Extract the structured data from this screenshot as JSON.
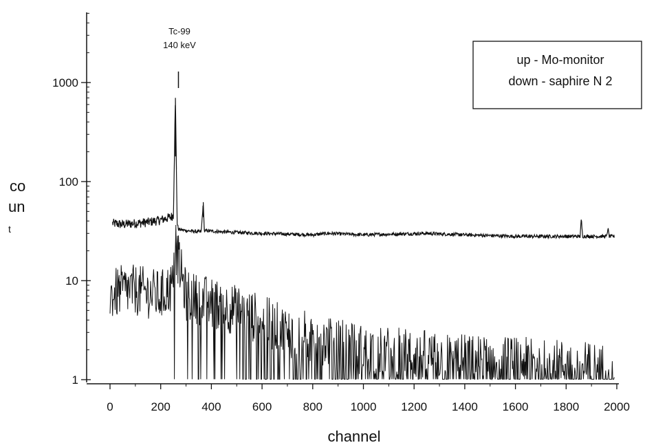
{
  "chart_data": {
    "type": "line",
    "title": "",
    "xlabel": "channel",
    "ylabel": "co\nun\nt",
    "xlim": [
      0,
      2000
    ],
    "ylim": [
      1,
      5000
    ],
    "yscale": "log",
    "grid": false,
    "x_ticks": [
      "0",
      "200",
      "400",
      "600",
      "800",
      "1000",
      "1200",
      "1400",
      "1600",
      "1800",
      "2000"
    ],
    "y_ticks": [
      "1",
      "10",
      "100",
      "1000"
    ],
    "annotation": {
      "x": 270,
      "lines": [
        "Tc-99",
        "140 keV"
      ]
    },
    "legend": {
      "placement": "top-right",
      "lines": [
        "up - Mo-monitor",
        "down - saphire N 2"
      ]
    },
    "series": [
      {
        "role": "up",
        "color": "#111111",
        "points": [
          [
            10,
            38
          ],
          [
            50,
            37
          ],
          [
            100,
            38
          ],
          [
            150,
            39
          ],
          [
            200,
            41
          ],
          [
            240,
            44
          ],
          [
            250,
            46
          ],
          [
            258,
            700
          ],
          [
            265,
            38
          ],
          [
            270,
            33
          ],
          [
            300,
            32
          ],
          [
            360,
            31
          ],
          [
            368,
            62
          ],
          [
            372,
            32
          ],
          [
            450,
            31
          ],
          [
            600,
            30
          ],
          [
            800,
            29
          ],
          [
            860,
            30
          ],
          [
            1000,
            29
          ],
          [
            1240,
            30
          ],
          [
            1400,
            29
          ],
          [
            1600,
            28
          ],
          [
            1800,
            28
          ],
          [
            1855,
            28
          ],
          [
            1860,
            42
          ],
          [
            1865,
            28
          ],
          [
            1960,
            28
          ],
          [
            1965,
            34
          ],
          [
            1970,
            28
          ],
          [
            1990,
            28
          ]
        ]
      },
      {
        "role": "down",
        "color": "#111111",
        "points": [
          [
            0,
            7
          ],
          [
            50,
            8
          ],
          [
            100,
            8
          ],
          [
            150,
            7.5
          ],
          [
            200,
            7
          ],
          [
            250,
            9
          ],
          [
            258,
            22
          ],
          [
            300,
            7
          ],
          [
            400,
            6
          ],
          [
            500,
            5
          ],
          [
            600,
            4
          ],
          [
            700,
            3
          ],
          [
            800,
            2.7
          ],
          [
            900,
            2.3
          ],
          [
            1000,
            2
          ],
          [
            1200,
            1.8
          ],
          [
            1400,
            1.6
          ],
          [
            1600,
            1.5
          ],
          [
            1800,
            1.4
          ],
          [
            1990,
            1.3
          ]
        ]
      }
    ]
  }
}
